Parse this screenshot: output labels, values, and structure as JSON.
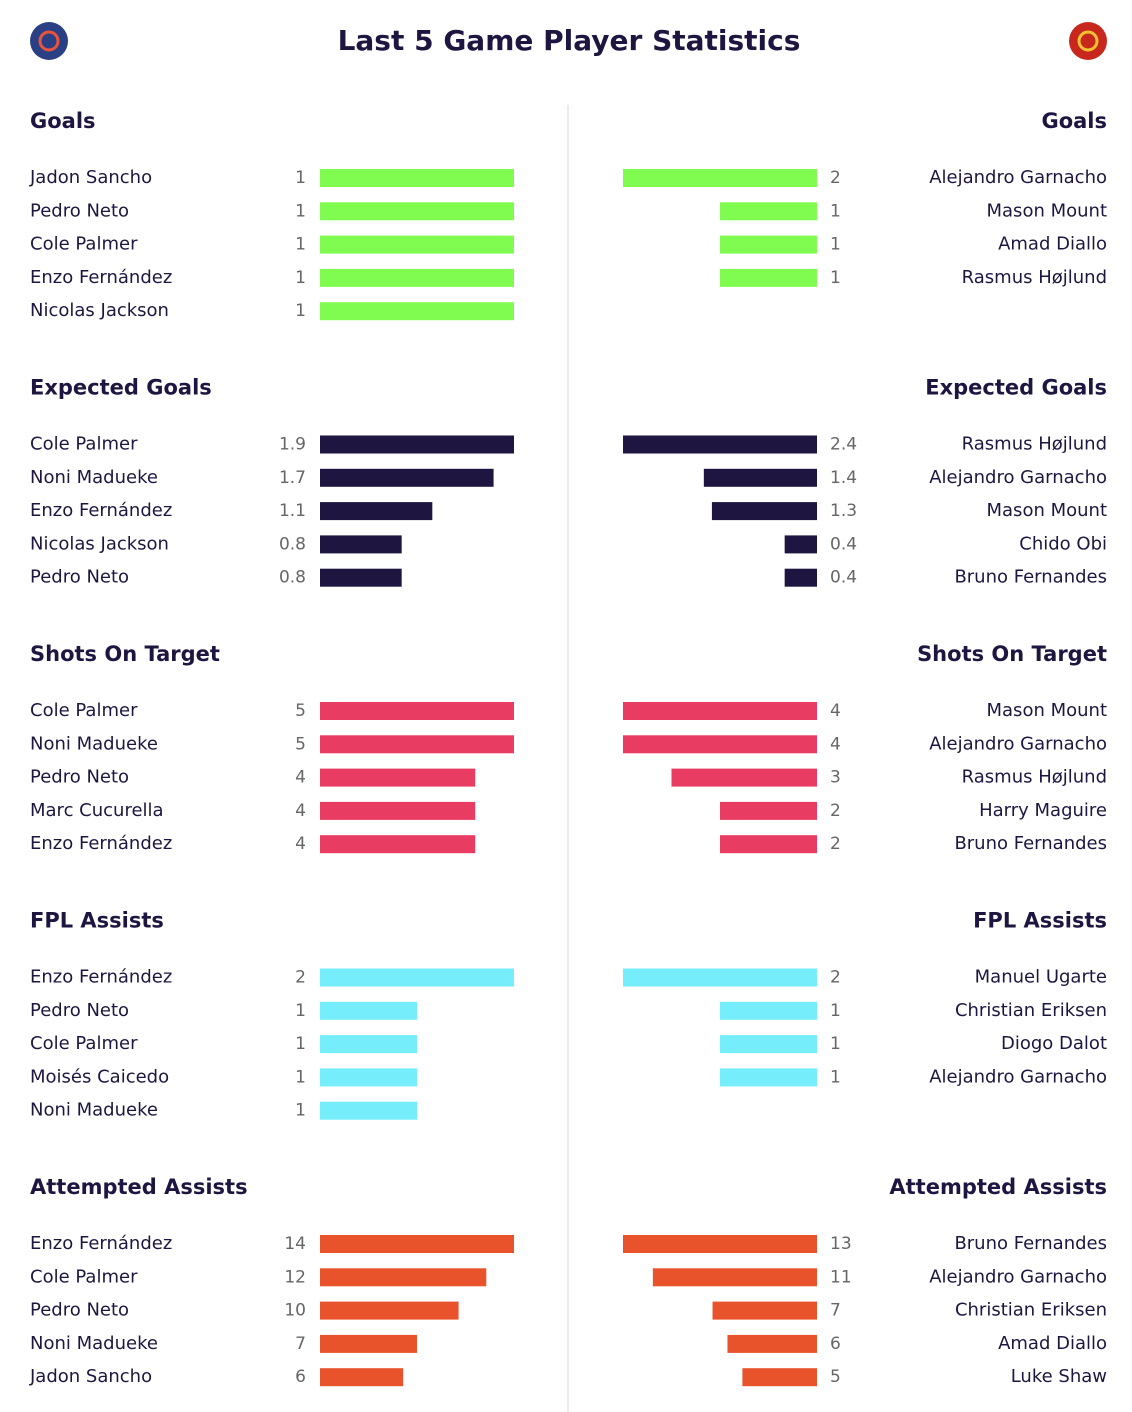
{
  "title": "Last 5 Game Player Statistics",
  "chart_data": [
    {
      "type": "bar",
      "title": "Goals",
      "color": "#80fc50",
      "categories": [
        "Jadon Sancho",
        "Pedro Neto",
        "Cole Palmer",
        "Enzo Fernández",
        "Nicolas Jackson"
      ],
      "values": [
        1,
        1,
        1,
        1,
        1
      ]
    },
    {
      "type": "bar",
      "title": "Goals",
      "color": "#80fc50",
      "categories": [
        "Alejandro Garnacho",
        "Mason Mount",
        "Amad Diallo",
        "Rasmus Højlund"
      ],
      "values": [
        2,
        1,
        1,
        1
      ]
    },
    {
      "type": "bar",
      "title": "Expected Goals",
      "color": "#1e1640",
      "categories": [
        "Cole Palmer",
        "Noni Madueke",
        "Enzo Fernández",
        "Nicolas Jackson",
        "Pedro Neto"
      ],
      "values": [
        1.9,
        1.7,
        1.1,
        0.8,
        0.8
      ]
    },
    {
      "type": "bar",
      "title": "Expected Goals",
      "color": "#1e1640",
      "categories": [
        "Rasmus Højlund",
        "Alejandro Garnacho",
        "Mason Mount",
        "Chido Obi",
        "Bruno Fernandes"
      ],
      "values": [
        2.4,
        1.4,
        1.3,
        0.4,
        0.4
      ]
    },
    {
      "type": "bar",
      "title": "Shots On Target",
      "color": "#e83c62",
      "categories": [
        "Cole Palmer",
        "Noni Madueke",
        "Pedro Neto",
        "Marc Cucurella",
        "Enzo Fernández"
      ],
      "values": [
        5,
        5,
        4,
        4,
        4
      ]
    },
    {
      "type": "bar",
      "title": "Shots On Target",
      "color": "#e83c62",
      "categories": [
        "Mason Mount",
        "Alejandro Garnacho",
        "Rasmus Højlund",
        "Harry Maguire",
        "Bruno Fernandes"
      ],
      "values": [
        4,
        4,
        3,
        2,
        2
      ]
    },
    {
      "type": "bar",
      "title": "FPL Assists",
      "color": "#76edfa",
      "categories": [
        "Enzo Fernández",
        "Pedro Neto",
        "Cole Palmer",
        "Moisés Caicedo",
        "Noni Madueke"
      ],
      "values": [
        2,
        1,
        1,
        1,
        1
      ]
    },
    {
      "type": "bar",
      "title": "FPL Assists",
      "color": "#76edfa",
      "categories": [
        "Manuel Ugarte",
        "Christian Eriksen",
        "Diogo Dalot",
        "Alejandro Garnacho"
      ],
      "values": [
        2,
        1,
        1,
        1
      ]
    },
    {
      "type": "bar",
      "title": "Attempted Assists",
      "color": "#e8532b",
      "categories": [
        "Enzo Fernández",
        "Cole Palmer",
        "Pedro Neto",
        "Noni Madueke",
        "Jadon Sancho"
      ],
      "values": [
        14,
        12,
        10,
        7,
        6
      ]
    },
    {
      "type": "bar",
      "title": "Attempted Assists",
      "color": "#e8532b",
      "categories": [
        "Bruno Fernandes",
        "Alejandro Garnacho",
        "Christian Eriksen",
        "Amad Diallo",
        "Luke Shaw"
      ],
      "values": [
        13,
        11,
        7,
        6,
        5
      ]
    }
  ]
}
